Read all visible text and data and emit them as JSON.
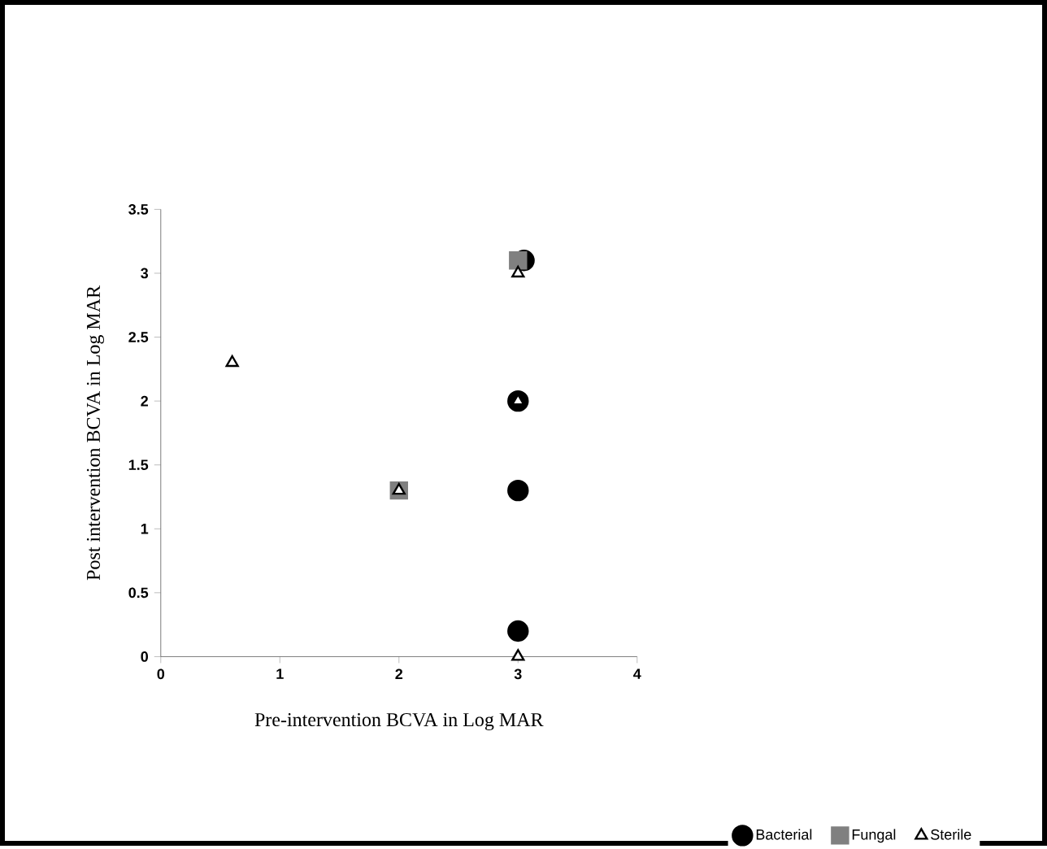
{
  "chart_data": {
    "type": "scatter",
    "xlabel": "Pre-intervention BCVA in Log MAR",
    "ylabel": "Post intervention BCVA in Log MAR",
    "xlim": [
      0,
      4
    ],
    "ylim": [
      0,
      3.5
    ],
    "xticks": [
      0,
      1,
      2,
      3,
      4
    ],
    "yticks": [
      0,
      0.5,
      1,
      1.5,
      2,
      2.5,
      3,
      3.5
    ],
    "grid": false,
    "legend": "bottom right",
    "series": [
      {
        "name": "Bacterial",
        "color": "#000000",
        "marker": "circle",
        "x": [
          3.05,
          3,
          3,
          3
        ],
        "values": [
          3.1,
          2,
          1.3,
          0.2
        ]
      },
      {
        "name": "Fungal",
        "color": "#808080",
        "marker": "square",
        "x": [
          3,
          2
        ],
        "values": [
          3.1,
          1.3
        ]
      },
      {
        "name": "Sterile",
        "color": "#000000",
        "marker": "triangle",
        "x": [
          0.6,
          3,
          3,
          2,
          3
        ],
        "values": [
          2.3,
          3,
          2,
          1.3,
          0
        ]
      }
    ]
  }
}
